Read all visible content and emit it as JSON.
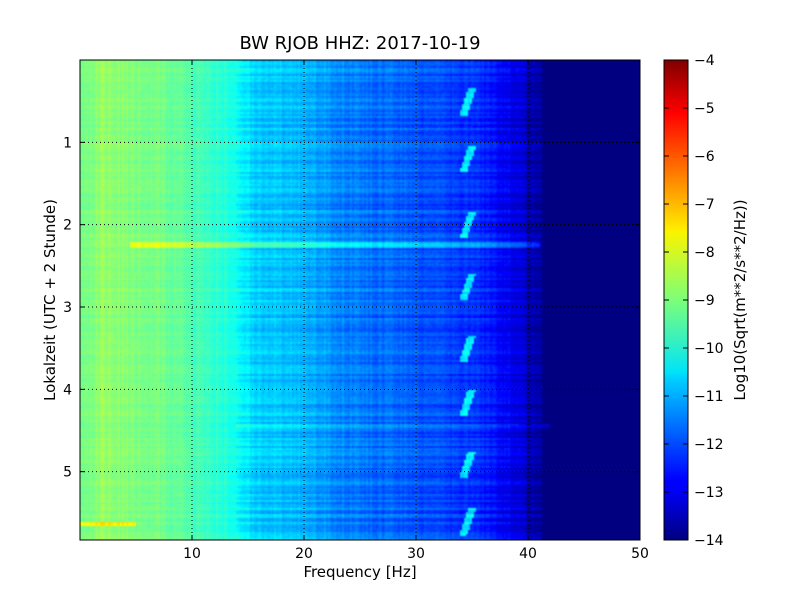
{
  "chart_data": {
    "type": "heatmap",
    "title": "BW RJOB HHZ: 2017-10-19",
    "xlabel": "Frequency [Hz]",
    "ylabel": "Lokalzeit (UTC + 2 Stunde)",
    "colorbar_label": "Log10(Sqrt(m**2/s**2/Hz))",
    "xlim": [
      0,
      50
    ],
    "ylim": [
      0,
      5.83
    ],
    "y_inverted": true,
    "x_ticks": [
      10,
      20,
      30,
      40,
      50
    ],
    "x_tick_labels": [
      "10",
      "20",
      "30",
      "40",
      "50"
    ],
    "y_ticks": [
      1,
      2,
      3,
      4,
      5
    ],
    "y_tick_labels": [
      "1",
      "2",
      "3",
      "4",
      "5"
    ],
    "colorbar_range": [
      -14,
      -4
    ],
    "colorbar_ticks": [
      -4,
      -5,
      -6,
      -7,
      -8,
      -9,
      -10,
      -11,
      -12,
      -13,
      -14
    ],
    "colorbar_tick_labels": [
      "−4",
      "−5",
      "−6",
      "−7",
      "−8",
      "−9",
      "−10",
      "−11",
      "−12",
      "−13",
      "−14"
    ],
    "colormap": "jet",
    "grid": true,
    "frequency_profile": {
      "freq_hz": [
        0,
        2,
        5,
        8,
        10,
        13,
        14.5,
        16,
        20,
        25,
        30,
        35,
        38,
        40,
        41.5,
        50
      ],
      "log_value": [
        -9.2,
        -8.8,
        -9.0,
        -9.2,
        -9.5,
        -9.9,
        -10.4,
        -10.7,
        -11.0,
        -11.6,
        -11.9,
        -12.3,
        -12.8,
        -13.4,
        -14.0,
        -14.0
      ]
    },
    "features": [
      {
        "kind": "horizontal_band",
        "time": 2.25,
        "freq_range": [
          4.5,
          41
        ],
        "delta": 1.0
      },
      {
        "kind": "horizontal_band",
        "time": 4.45,
        "freq_range": [
          14,
          42
        ],
        "delta": 0.7
      },
      {
        "kind": "horizontal_band",
        "time": 5.63,
        "freq_range": [
          0,
          5
        ],
        "delta": 1.3
      },
      {
        "kind": "periodic_signal",
        "freq_hz": 34.5,
        "times": [
          0.55,
          1.25,
          2.05,
          2.8,
          3.55,
          4.2,
          4.95,
          5.65
        ],
        "delta": 1.8
      }
    ]
  }
}
